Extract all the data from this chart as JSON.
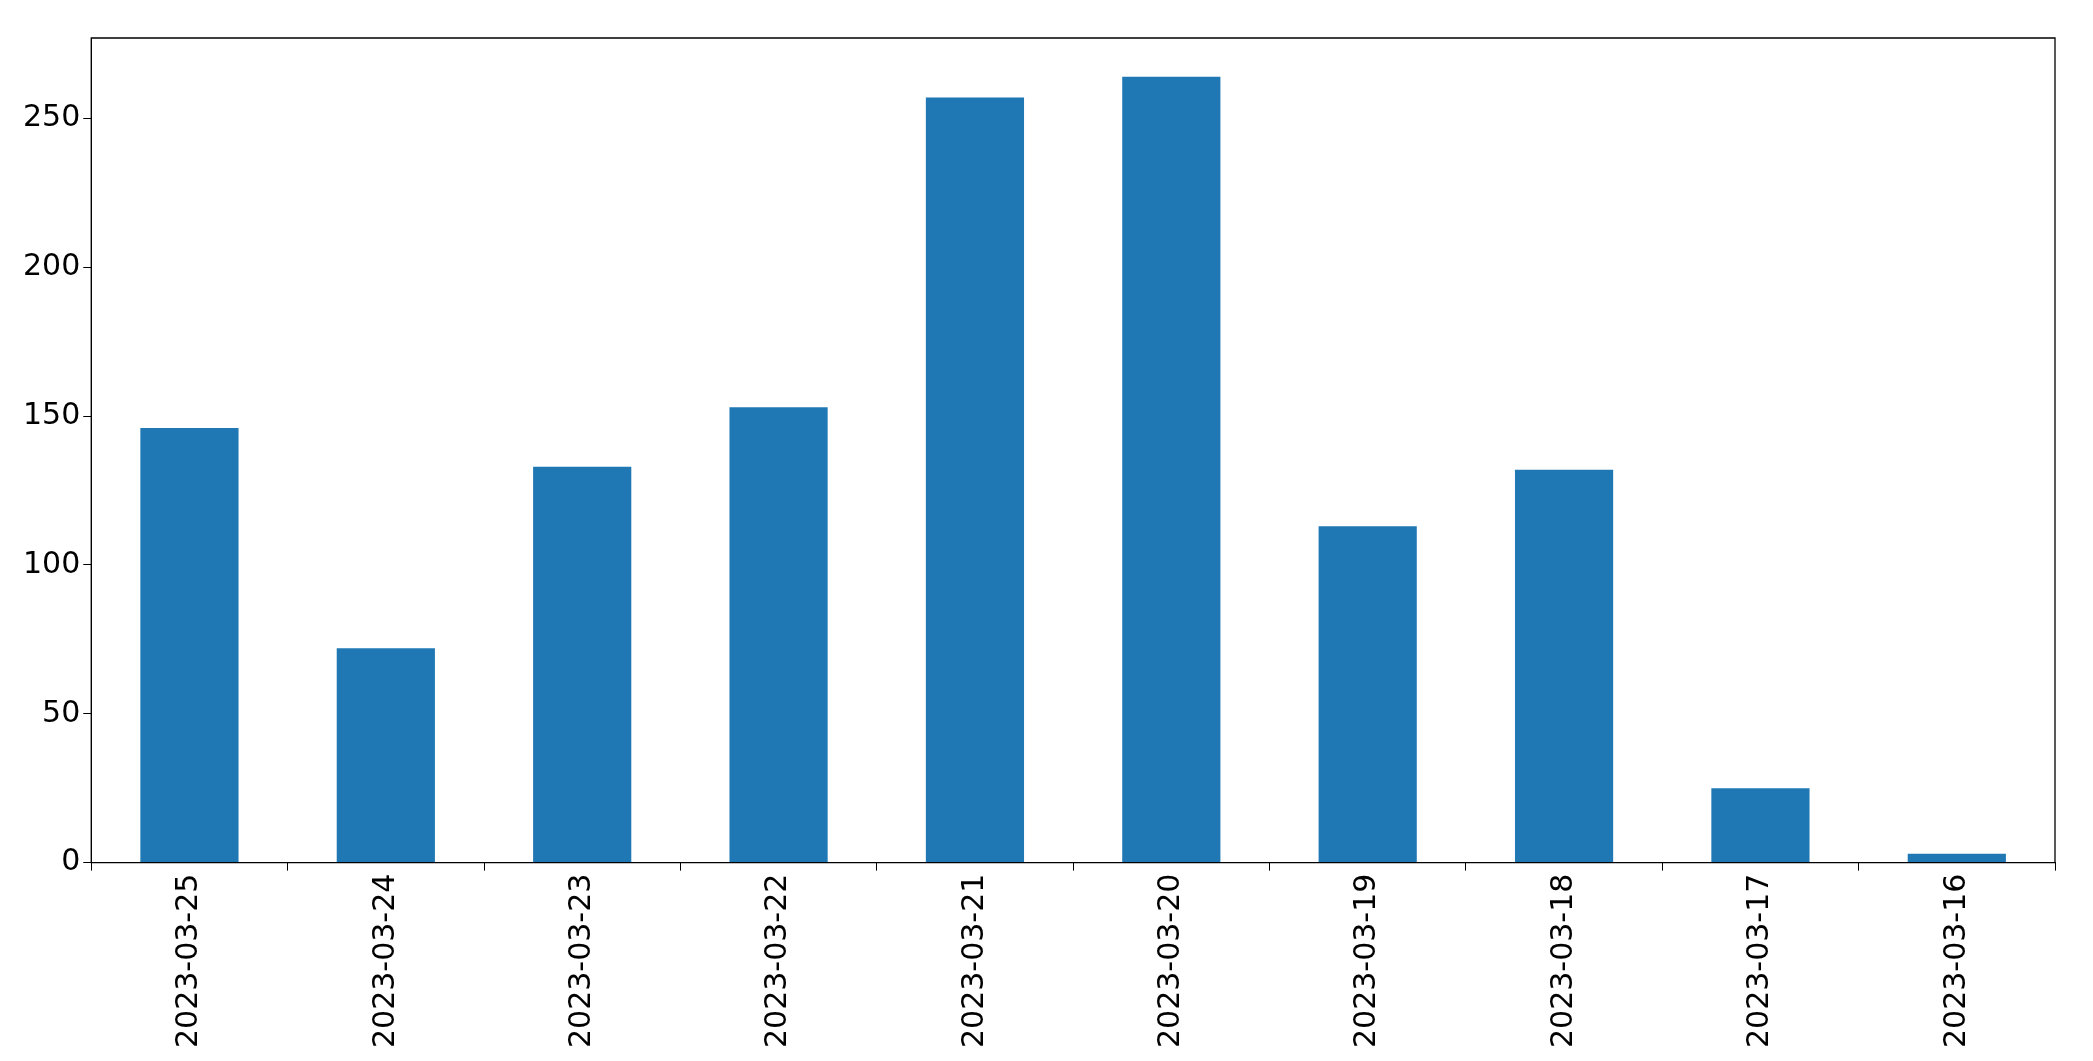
{
  "chart_data": {
    "type": "bar",
    "categories": [
      "2023-03-25",
      "2023-03-24",
      "2023-03-23",
      "2023-03-22",
      "2023-03-21",
      "2023-03-20",
      "2023-03-19",
      "2023-03-18",
      "2023-03-17",
      "2023-03-16"
    ],
    "values": [
      146,
      72,
      133,
      153,
      257,
      264,
      113,
      132,
      25,
      3
    ],
    "color": "#1f77b4",
    "ylim": [
      0,
      277
    ],
    "yticks": [
      0,
      50,
      100,
      150,
      200,
      250
    ],
    "grid": false,
    "legend": false
  }
}
